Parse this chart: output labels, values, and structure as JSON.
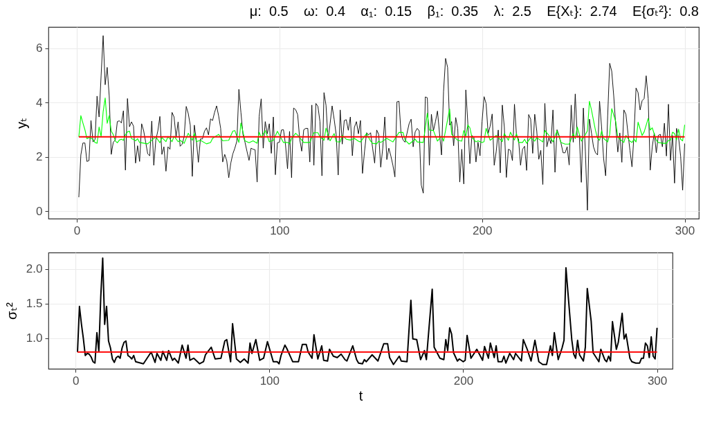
{
  "chart_data": [
    {
      "type": "line",
      "title": "μ:  0.5    ω:  0.4    α₁:  0.15    β₁:  0.35    λ:  2.5    E{Xₜ}:  2.74    E{σₜ²}:  0.8",
      "ylabel": "yₜ",
      "xlim": [
        -14,
        307
      ],
      "xticks": [
        0,
        100,
        200,
        300
      ],
      "ylim": [
        -0.28,
        6.79
      ],
      "yticks": [
        0,
        2,
        4,
        6
      ],
      "grid": true,
      "x": [
        1,
        2,
        3,
        4,
        5,
        6,
        7,
        8,
        9,
        10,
        11,
        12,
        13,
        14,
        15,
        16,
        17,
        18,
        19,
        20,
        21,
        22,
        23,
        24,
        25,
        26,
        27,
        28,
        29,
        30,
        31,
        32,
        33,
        34,
        35,
        36,
        37,
        38,
        39,
        40,
        41,
        42,
        43,
        44,
        45,
        46,
        47,
        48,
        49,
        50,
        51,
        52,
        53,
        54,
        55,
        56,
        57,
        58,
        59,
        60,
        61,
        62,
        63,
        64,
        65,
        66,
        67,
        68,
        69,
        70,
        71,
        72,
        73,
        74,
        75,
        76,
        77,
        78,
        79,
        80,
        81,
        82,
        83,
        84,
        85,
        86,
        87,
        88,
        89,
        90,
        91,
        92,
        93,
        94,
        95,
        96,
        97,
        98,
        99,
        100,
        101,
        102,
        103,
        104,
        105,
        106,
        107,
        108,
        109,
        110,
        111,
        112,
        113,
        114,
        115,
        116,
        117,
        118,
        119,
        120,
        121,
        122,
        123,
        124,
        125,
        126,
        127,
        128,
        129,
        130,
        131,
        132,
        133,
        134,
        135,
        136,
        137,
        138,
        139,
        140,
        141,
        142,
        143,
        144,
        145,
        146,
        147,
        148,
        149,
        150,
        151,
        152,
        153,
        154,
        155,
        156,
        157,
        158,
        159,
        160,
        161,
        162,
        163,
        164,
        165,
        166,
        167,
        168,
        169,
        170,
        171,
        172,
        173,
        174,
        175,
        176,
        177,
        178,
        179,
        180,
        181,
        182,
        183,
        184,
        185,
        186,
        187,
        188,
        189,
        190,
        191,
        192,
        193,
        194,
        195,
        196,
        197,
        198,
        199,
        200,
        201,
        202,
        203,
        204,
        205,
        206,
        207,
        208,
        209,
        210,
        211,
        212,
        213,
        214,
        215,
        216,
        217,
        218,
        219,
        220,
        221,
        222,
        223,
        224,
        225,
        226,
        227,
        228,
        229,
        230,
        231,
        232,
        233,
        234,
        235,
        236,
        237,
        238,
        239,
        240,
        241,
        242,
        243,
        244,
        245,
        246,
        247,
        248,
        249,
        250,
        251,
        252,
        253,
        254,
        255,
        256,
        257,
        258,
        259,
        260,
        261,
        262,
        263,
        264,
        265,
        266,
        267,
        268,
        269,
        270,
        271,
        272,
        273,
        274,
        275,
        276,
        277,
        278,
        279,
        280,
        281,
        282,
        283,
        284,
        285,
        286,
        287,
        288,
        289,
        290,
        291,
        292,
        293,
        294,
        295,
        296,
        297,
        298,
        299,
        300
      ],
      "series": [
        {
          "color": "#000000",
          "values": [
            0.51,
            2.07,
            2.51,
            2.51,
            1.83,
            1.86,
            3.34,
            2.55,
            2.64,
            4.24,
            3.47,
            5.0,
            6.47,
            4.66,
            5.3,
            4.24,
            2.09,
            2.54,
            2.62,
            3.3,
            3.33,
            3.25,
            3.7,
            1.51,
            4.15,
            3.11,
            3.29,
            3.13,
            1.77,
            2.41,
            1.83,
            3.22,
            2.96,
            2.54,
            2.11,
            2.04,
            3.32,
            1.69,
            2.62,
            2.96,
            3.49,
            2.09,
            2.37,
            1.47,
            2.37,
            2.28,
            3.64,
            3.47,
            2.72,
            3.29,
            2.39,
            2.47,
            2.75,
            3.86,
            3.6,
            3.17,
            1.28,
            3.17,
            2.62,
            1.8,
            2.66,
            2.66,
            2.94,
            3.07,
            2.81,
            3.4,
            3.34,
            3.64,
            3.88,
            3.51,
            3.05,
            1.81,
            2.09,
            1.86,
            1.23,
            1.77,
            2.11,
            2.32,
            2.58,
            4.49,
            3.64,
            2.83,
            2.54,
            2.2,
            1.87,
            2.32,
            2.28,
            2.26,
            1.07,
            3.49,
            4.14,
            2.32,
            3.3,
            2.85,
            3.22,
            2.13,
            3.47,
            1.34,
            2.52,
            2.54,
            2.99,
            3.0,
            2.45,
            1.56,
            2.94,
            1.23,
            3.8,
            3.74,
            3.56,
            2.66,
            2.21,
            3.0,
            3.05,
            3.05,
            1.81,
            3.91,
            1.69,
            3.97,
            3.86,
            3.3,
            1.3,
            4.37,
            3.9,
            2.62,
            3.22,
            3.88,
            3.39,
            2.83,
            1.33,
            3.73,
            2.47,
            3.34,
            3.37,
            2.98,
            3.47,
            2.04,
            3.09,
            3.3,
            2.85,
            3.34,
            1.39,
            2.2,
            2.89,
            2.81,
            2.89,
            2.32,
            1.77,
            2.99,
            2.83,
            1.62,
            2.32,
            3.47,
            1.9,
            2.32,
            2.03,
            1.69,
            1.26,
            4.03,
            4.05,
            2.88,
            2.62,
            2.54,
            2.88,
            3.22,
            3.39,
            2.37,
            2.92,
            3.05,
            2.96,
            0.96,
            0.66,
            4.21,
            4.18,
            1.69,
            3.57,
            2.96,
            3.3,
            3.69,
            2.88,
            2.07,
            4.41,
            5.63,
            5.3,
            3.17,
            3.3,
            2.41,
            3.45,
            3.05,
            1.07,
            2.28,
            1.0,
            4.47,
            3.22,
            1.75,
            2.79,
            2.71,
            1.81,
            2.54,
            2.04,
            3.3,
            4.22,
            3.97,
            2.86,
            3.13,
            3.58,
            1.69,
            2.2,
            2.99,
            1.41,
            3.91,
            3.09,
            1.24,
            2.28,
            2.24,
            1.86,
            3.94,
            2.79,
            2.66,
            1.69,
            2.28,
            2.39,
            1.5,
            3.56,
            3.39,
            2.13,
            3.57,
            2.96,
            1.91,
            2.24,
            0.98,
            3.97,
            2.37,
            2.71,
            2.49,
            3.73,
            1.43,
            3.0,
            2.79,
            2.49,
            2.15,
            2.15,
            2.37,
            1.7,
            3.91,
            2.54,
            4.32,
            2.71,
            2.79,
            1.06,
            3.8,
            2.2,
            0.03,
            3.39,
            2.88,
            2.37,
            2.15,
            2.07,
            4.05,
            3.09,
            1.94,
            1.3,
            3.5,
            5.45,
            5.16,
            4.24,
            3.13,
            2.18,
            2.88,
            1.8,
            3.73,
            3.57,
            2.88,
            2.24,
            1.63,
            2.83,
            4.54,
            4.37,
            3.73,
            4.07,
            4.15,
            4.99,
            4.15,
            1.51,
            2.37,
            2.88,
            2.15,
            2.79,
            2.83,
            2.37,
            3.24,
            2.03,
            3.94,
            1.87,
            2.79,
            1.03,
            3.05,
            2.71,
            2.03,
            0.77,
            2.49
          ]
        },
        {
          "color": "#00ff00",
          "x": [
            1,
            2,
            3,
            4,
            5,
            6,
            7,
            8,
            9,
            10,
            11,
            12,
            13,
            14,
            15,
            16,
            17,
            18,
            19,
            20,
            21,
            22,
            23,
            24,
            25,
            26,
            27,
            28,
            29,
            30,
            31,
            35,
            39,
            41,
            42,
            44,
            45,
            47,
            48,
            50,
            51,
            53,
            55,
            57,
            58,
            59,
            61,
            64,
            66,
            67,
            70,
            72,
            75,
            77,
            78,
            80,
            81,
            83,
            85,
            87,
            89,
            90,
            91,
            93,
            95,
            97,
            99,
            102,
            104,
            105,
            106,
            108,
            109,
            112,
            115,
            117,
            119,
            120,
            122,
            123,
            125,
            127,
            128,
            130,
            131,
            133,
            135,
            137,
            139,
            140,
            143,
            145,
            146,
            148,
            149,
            150,
            153,
            156,
            159,
            161,
            162,
            164,
            167,
            168,
            171,
            173,
            174,
            176,
            178,
            180,
            181,
            184,
            185,
            188,
            190,
            191,
            192,
            193,
            194,
            195,
            197,
            198,
            200,
            201,
            202,
            204,
            207,
            210,
            211,
            213,
            214,
            216,
            217,
            218,
            220,
            221,
            222,
            224,
            226,
            227,
            230,
            231,
            233,
            235,
            237,
            239,
            241,
            243,
            245,
            246,
            247,
            249,
            251,
            252,
            253,
            254,
            256,
            257,
            258,
            259,
            260,
            262,
            263,
            264,
            266,
            267,
            270,
            271,
            273,
            274,
            275,
            276,
            277,
            279,
            280,
            282,
            283,
            284,
            286,
            287,
            289,
            291,
            292,
            293,
            294,
            295,
            296,
            297,
            298,
            299,
            300
          ],
          "values": [
            2.74,
            3.52,
            3.25,
            3.0,
            2.67,
            2.71,
            2.69,
            2.64,
            2.53,
            2.5,
            3.1,
            2.75,
            3.66,
            4.17,
            3.24,
            3.52,
            2.95,
            2.82,
            2.59,
            2.52,
            2.62,
            2.65,
            2.61,
            2.82,
            2.92,
            2.95,
            2.67,
            2.64,
            2.59,
            2.67,
            2.53,
            2.48,
            2.74,
            2.52,
            2.71,
            2.56,
            2.75,
            2.56,
            2.76,
            2.56,
            2.61,
            2.5,
            2.87,
            2.61,
            2.87,
            2.56,
            2.61,
            2.48,
            2.53,
            2.68,
            2.83,
            2.59,
            2.61,
            2.95,
            2.97,
            2.53,
            3.25,
            2.59,
            2.52,
            2.59,
            2.5,
            2.91,
            2.71,
            2.97,
            2.56,
            2.61,
            2.94,
            2.53,
            2.53,
            2.48,
            2.67,
            2.87,
            2.8,
            2.53,
            2.53,
            2.89,
            2.89,
            2.74,
            2.61,
            3.06,
            2.59,
            2.86,
            2.56,
            2.55,
            2.79,
            2.65,
            2.62,
            2.68,
            2.58,
            2.55,
            2.86,
            2.58,
            2.5,
            2.48,
            2.58,
            2.53,
            2.68,
            2.55,
            2.9,
            2.9,
            2.62,
            2.47,
            2.65,
            2.55,
            2.53,
            3.61,
            2.99,
            2.97,
            2.58,
            2.76,
            2.58,
            3.77,
            2.83,
            2.61,
            2.58,
            2.97,
            2.76,
            3.18,
            3.07,
            2.72,
            2.55,
            2.59,
            2.53,
            2.56,
            3.05,
            2.61,
            2.79,
            2.56,
            2.86,
            2.61,
            2.91,
            2.62,
            2.86,
            2.53,
            2.53,
            2.65,
            2.5,
            2.71,
            2.58,
            2.71,
            2.55,
            2.97,
            2.79,
            2.55,
            2.96,
            2.53,
            2.47,
            2.47,
            2.86,
            2.67,
            3.1,
            2.58,
            2.82,
            2.96,
            4.05,
            3.73,
            2.97,
            2.69,
            2.61,
            2.96,
            2.68,
            2.55,
            2.83,
            3.78,
            3.3,
            2.72,
            2.53,
            2.79,
            2.58,
            2.53,
            2.65,
            2.55,
            3.28,
            2.79,
            2.92,
            3.42,
            2.99,
            3.07,
            2.61,
            2.53,
            2.5,
            2.5,
            2.61,
            2.61,
            2.91,
            2.86,
            2.62,
            3.02,
            2.65,
            2.59,
            3.18
          ]
        },
        {
          "color": "#ff0000",
          "x": [
            1,
            300
          ],
          "values": [
            2.74,
            2.74
          ]
        }
      ]
    },
    {
      "type": "line",
      "xlabel": "t",
      "ylabel": "σₜ²",
      "xlim": [
        -14,
        308
      ],
      "xticks": [
        0,
        100,
        200,
        300
      ],
      "ylim": [
        0.557,
        2.24
      ],
      "yticks": [
        {
          "value": 1,
          "label": "1.0"
        },
        1.5,
        {
          "value": 2,
          "label": "2.0"
        }
      ],
      "grid": true,
      "series": [
        {
          "color": "#000000",
          "x": [
            1,
            2,
            3,
            4,
            5,
            6,
            7,
            8,
            9,
            10,
            11,
            12,
            13,
            14,
            15,
            16,
            17,
            18,
            19,
            20,
            21,
            22,
            23,
            24,
            25,
            26,
            27,
            28,
            29,
            30,
            31,
            35,
            39,
            41,
            42,
            44,
            45,
            47,
            48,
            50,
            51,
            53,
            55,
            57,
            58,
            59,
            61,
            64,
            66,
            67,
            70,
            72,
            75,
            77,
            78,
            80,
            81,
            83,
            85,
            87,
            89,
            90,
            91,
            93,
            95,
            97,
            99,
            102,
            104,
            105,
            106,
            108,
            109,
            112,
            115,
            117,
            119,
            120,
            122,
            123,
            125,
            127,
            128,
            130,
            131,
            133,
            135,
            137,
            139,
            140,
            143,
            145,
            146,
            148,
            149,
            150,
            153,
            156,
            159,
            161,
            162,
            164,
            167,
            168,
            171,
            173,
            174,
            176,
            178,
            180,
            181,
            184,
            185,
            188,
            190,
            191,
            192,
            193,
            194,
            195,
            197,
            198,
            200,
            201,
            202,
            204,
            207,
            210,
            211,
            213,
            214,
            216,
            217,
            218,
            220,
            221,
            222,
            224,
            226,
            227,
            230,
            231,
            233,
            235,
            237,
            239,
            241,
            243,
            245,
            246,
            247,
            249,
            251,
            252,
            253,
            254,
            256,
            257,
            258,
            259,
            260,
            262,
            263,
            264,
            266,
            267,
            270,
            271,
            273,
            274,
            275,
            276,
            277,
            279,
            280,
            282,
            283,
            284,
            286,
            287,
            289,
            291,
            292,
            293,
            294,
            295,
            296,
            297,
            298,
            299,
            300
          ],
          "values": [
            0.8,
            1.46,
            1.21,
            1.0,
            0.75,
            0.78,
            0.77,
            0.73,
            0.66,
            0.64,
            1.08,
            0.81,
            1.6,
            2.16,
            1.2,
            1.46,
            0.96,
            0.86,
            0.7,
            0.65,
            0.72,
            0.74,
            0.71,
            0.86,
            0.94,
            0.96,
            0.75,
            0.73,
            0.7,
            0.75,
            0.66,
            0.63,
            0.8,
            0.65,
            0.78,
            0.68,
            0.81,
            0.68,
            0.82,
            0.68,
            0.71,
            0.64,
            0.9,
            0.71,
            0.9,
            0.68,
            0.71,
            0.63,
            0.66,
            0.76,
            0.87,
            0.7,
            0.71,
            0.96,
            0.98,
            0.66,
            1.21,
            0.7,
            0.65,
            0.7,
            0.64,
            0.93,
            0.78,
            0.98,
            0.68,
            0.71,
            0.95,
            0.66,
            0.66,
            0.63,
            0.75,
            0.9,
            0.85,
            0.66,
            0.66,
            0.91,
            0.91,
            0.8,
            0.71,
            1.05,
            0.7,
            0.89,
            0.68,
            0.67,
            0.84,
            0.74,
            0.72,
            0.77,
            0.69,
            0.67,
            0.89,
            0.69,
            0.64,
            0.63,
            0.69,
            0.66,
            0.76,
            0.67,
            0.92,
            0.92,
            0.72,
            0.62,
            0.74,
            0.67,
            0.66,
            1.55,
            0.99,
            0.98,
            0.69,
            0.82,
            0.69,
            1.71,
            0.87,
            0.71,
            0.69,
            0.98,
            0.82,
            1.15,
            1.06,
            0.79,
            0.67,
            0.7,
            0.66,
            0.68,
            1.04,
            0.71,
            0.84,
            0.68,
            0.88,
            0.71,
            0.93,
            0.72,
            0.89,
            0.66,
            0.66,
            0.74,
            0.64,
            0.78,
            0.69,
            0.78,
            0.67,
            0.98,
            0.84,
            0.67,
            0.97,
            0.66,
            0.62,
            0.62,
            0.89,
            0.75,
            1.08,
            0.69,
            0.86,
            0.97,
            2.02,
            1.67,
            0.98,
            0.77,
            0.71,
            0.97,
            0.76,
            0.67,
            0.87,
            1.72,
            1.25,
            0.79,
            0.66,
            0.84,
            0.69,
            0.66,
            0.74,
            0.67,
            1.24,
            0.84,
            0.94,
            1.36,
            0.99,
            1.06,
            0.71,
            0.66,
            0.64,
            0.64,
            0.71,
            0.71,
            0.93,
            0.89,
            0.72,
            1.02,
            0.74,
            0.7,
            1.15
          ]
        },
        {
          "color": "#ff0000",
          "x": [
            1,
            300
          ],
          "values": [
            0.8,
            0.8
          ]
        }
      ]
    }
  ]
}
